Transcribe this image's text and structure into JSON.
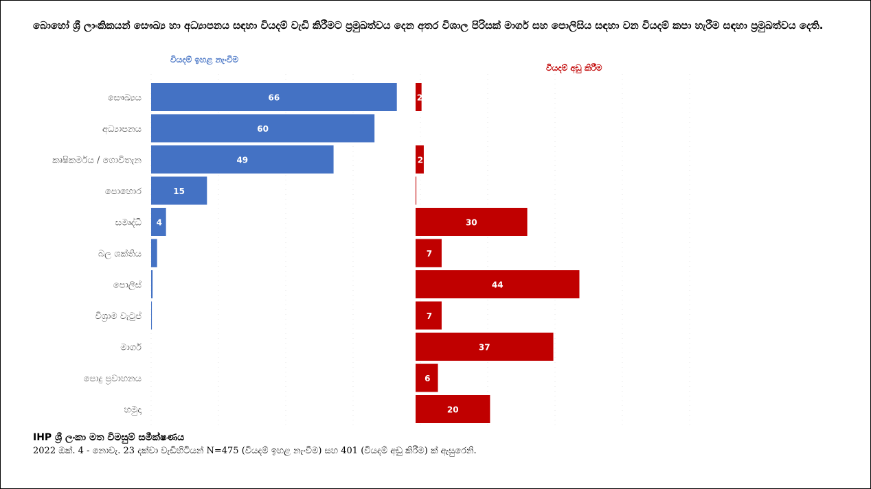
{
  "title": "බොහෝ ශ්‍රී ලාංකිකයන් සෞඛ්‍ය හා අධ්‍යාපනය සඳහා වියදම් වැඩි කිරීමට ප්‍රමුඛත්වය දෙන අතර විශාල පිරිසක් මාර්ග සහ පොලිසිය සඳහා වන වියදම් කපා හැරීම සඳහා ප්‍රමුඛත්වය දෙති.",
  "source": {
    "title": "IHP ශ්‍රී ලංකා මත විමසුම් සමීක්ෂණය",
    "note": "2022 ඔක්. 4 - නොවැ. 23 දක්වා වැඩිහිටියන් N=475 (වියදම් ඉහළ නැංවීම) සහ 401 (වියදම් අඩු කිරීම) ක් ඇසුරෙනි."
  },
  "chart_data": {
    "type": "bar",
    "orientation": "horizontal",
    "categories": [
      "සෞඛ්‍යය",
      "අධ්‍යාපනය",
      "කෘෂිකර්මය / ගොවිතැන",
      "පොහොර",
      "සමෘද්ධි",
      "බල ශක්තිය",
      "පොලිස්",
      "විශ්‍රාම වැටුප්",
      "මාර්ග",
      "පොදු ප්‍රවාහනය",
      "හමුදා"
    ],
    "series": [
      {
        "name": "වියදම් ඉහළ නැංවීම",
        "color": "#4472c4",
        "values": [
          66,
          60,
          49,
          15,
          4,
          1.6,
          0.4,
          0.2,
          0,
          0,
          0
        ],
        "labels": [
          "66",
          "60",
          "49",
          "15",
          "4",
          "",
          "",
          "",
          "",
          "",
          ""
        ]
      },
      {
        "name": "වියදම් අඩු කිරීම",
        "color": "#c00000",
        "values": [
          1.6,
          0,
          2.2,
          0.2,
          30,
          7,
          44,
          7,
          37,
          6,
          20
        ],
        "labels": [
          "2",
          "",
          "2",
          "",
          "30",
          "7",
          "44",
          "7",
          "37",
          "6",
          "20"
        ]
      }
    ],
    "xlim": [
      0,
      70
    ],
    "grid": false,
    "legend_placement": "above each panel"
  }
}
